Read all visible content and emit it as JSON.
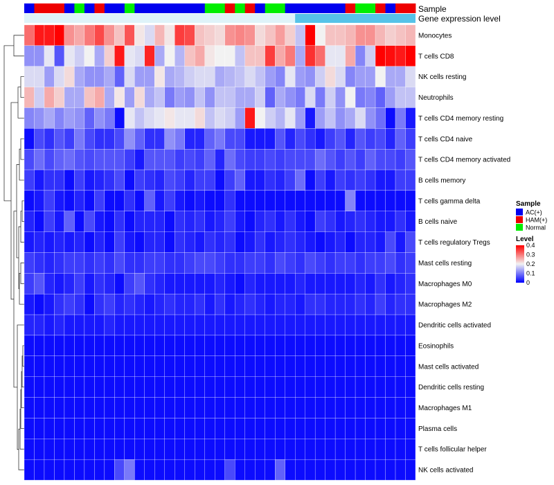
{
  "chart_data": {
    "type": "heatmap",
    "title": "",
    "annotation_labels": {
      "sample": "Sample",
      "expression": "Gene expression level"
    },
    "rows": [
      "Monocytes",
      "T cells CD8",
      "NK cells resting",
      "Neutrophils",
      "T cells CD4 memory resting",
      "T cells CD4 naive",
      "T cells CD4 memory activated",
      "B cells memory",
      "T cells gamma delta",
      "B cells naive",
      "T cells regulatory  Tregs",
      "Mast cells resting",
      "Macrophages M0",
      "Macrophages M2",
      "Dendritic cells activated",
      "Eosinophils",
      "Mast cells activated",
      "Dendritic cells resting",
      "Macrophages M1",
      "Plasma cells",
      "T cells follicular helper",
      "NK cells activated"
    ],
    "sample_groups": [
      "AC(+)",
      "HAM(+)",
      "HAM(+)",
      "HAM(+)",
      "AC(+)",
      "Normal",
      "AC(+)",
      "HAM(+)",
      "AC(+)",
      "AC(+)",
      "Normal",
      "AC(+)",
      "AC(+)",
      "AC(+)",
      "AC(+)",
      "AC(+)",
      "AC(+)",
      "AC(+)",
      "Normal",
      "Normal",
      "HAM(+)",
      "Normal",
      "HAM(+)",
      "AC(+)",
      "Normal",
      "Normal",
      "AC(+)",
      "AC(+)",
      "AC(+)",
      "AC(+)",
      "AC(+)",
      "AC(+)",
      "HAM(+)",
      "Normal",
      "Normal",
      "HAM(+)",
      "AC(+)",
      "HAM(+)",
      "HAM(+)"
    ],
    "expression_bar": {
      "colors": [
        "#dff3f9",
        "#56c3e8"
      ],
      "split_column": 27
    },
    "values": [
      [
        0.31,
        0.38,
        0.38,
        0.4,
        0.28,
        0.26,
        0.3,
        0.34,
        0.28,
        0.24,
        0.33,
        0.21,
        0.18,
        0.25,
        0.21,
        0.35,
        0.34,
        0.24,
        0.23,
        0.22,
        0.28,
        0.29,
        0.28,
        0.22,
        0.24,
        0.27,
        0.23,
        0.16,
        0.4,
        0.2,
        0.24,
        0.24,
        0.25,
        0.28,
        0.28,
        0.25,
        0.23,
        0.24,
        0.25
      ],
      [
        0.12,
        0.12,
        0.19,
        0.07,
        0.19,
        0.17,
        0.2,
        0.14,
        0.23,
        0.38,
        0.19,
        0.18,
        0.37,
        0.14,
        0.2,
        0.15,
        0.24,
        0.26,
        0.21,
        0.2,
        0.2,
        0.16,
        0.24,
        0.24,
        0.35,
        0.26,
        0.3,
        0.14,
        0.36,
        0.31,
        0.19,
        0.19,
        0.26,
        0.11,
        0.17,
        0.4,
        0.39,
        0.38,
        0.4
      ],
      [
        0.18,
        0.18,
        0.13,
        0.18,
        0.22,
        0.14,
        0.12,
        0.12,
        0.14,
        0.08,
        0.18,
        0.13,
        0.13,
        0.21,
        0.14,
        0.15,
        0.17,
        0.18,
        0.18,
        0.14,
        0.15,
        0.16,
        0.18,
        0.16,
        0.13,
        0.11,
        0.19,
        0.13,
        0.12,
        0.17,
        0.22,
        0.18,
        0.11,
        0.13,
        0.13,
        0.2,
        0.14,
        0.14,
        0.18
      ],
      [
        0.25,
        0.17,
        0.26,
        0.23,
        0.14,
        0.14,
        0.24,
        0.26,
        0.14,
        0.21,
        0.13,
        0.22,
        0.14,
        0.16,
        0.1,
        0.13,
        0.12,
        0.16,
        0.12,
        0.16,
        0.16,
        0.14,
        0.14,
        0.17,
        0.08,
        0.14,
        0.12,
        0.1,
        0.18,
        0.1,
        0.17,
        0.12,
        0.2,
        0.1,
        0.11,
        0.08,
        0.13,
        0.16,
        0.16
      ],
      [
        0.11,
        0.12,
        0.14,
        0.11,
        0.13,
        0.12,
        0.08,
        0.12,
        0.1,
        0.01,
        0.19,
        0.16,
        0.18,
        0.19,
        0.21,
        0.19,
        0.19,
        0.22,
        0.16,
        0.18,
        0.17,
        0.13,
        0.38,
        0.2,
        0.17,
        0.15,
        0.19,
        0.13,
        0.02,
        0.13,
        0.16,
        0.12,
        0.14,
        0.18,
        0.12,
        0.09,
        0.01,
        0.1,
        0.02
      ],
      [
        0.01,
        0.06,
        0.04,
        0.07,
        0.05,
        0.1,
        0.06,
        0.04,
        0.04,
        0.06,
        0.12,
        0.08,
        0.04,
        0.04,
        0.12,
        0.1,
        0.03,
        0.03,
        0.08,
        0.1,
        0.06,
        0.06,
        0.02,
        0.02,
        0.02,
        0.07,
        0.03,
        0.06,
        0.04,
        0.02,
        0.05,
        0.07,
        0.03,
        0.07,
        0.05,
        0.06,
        0.03,
        0.08,
        0.05
      ],
      [
        0.06,
        0.09,
        0.06,
        0.08,
        0.09,
        0.07,
        0.06,
        0.07,
        0.07,
        0.07,
        0.05,
        0.02,
        0.07,
        0.07,
        0.07,
        0.05,
        0.06,
        0.05,
        0.08,
        0.03,
        0.09,
        0.06,
        0.05,
        0.05,
        0.06,
        0.05,
        0.06,
        0.06,
        0.06,
        0.09,
        0.07,
        0.05,
        0.07,
        0.05,
        0.08,
        0.06,
        0.06,
        0.05,
        0.07
      ],
      [
        0.05,
        0.02,
        0.04,
        0.04,
        0.01,
        0.05,
        0.02,
        0.03,
        0.04,
        0.06,
        0.01,
        0.05,
        0.04,
        0.03,
        0.06,
        0.05,
        0.03,
        0.05,
        0.05,
        0.01,
        0.05,
        0.08,
        0.02,
        0.02,
        0.04,
        0.03,
        0.05,
        0.09,
        0.01,
        0.05,
        0.02,
        0.05,
        0.04,
        0.05,
        0.04,
        0.02,
        0.02,
        0.05,
        0.05
      ],
      [
        0.01,
        0.02,
        0.05,
        0.02,
        0.01,
        0.03,
        0.01,
        0.05,
        0.01,
        0.01,
        0.04,
        0.01,
        0.08,
        0.02,
        0.05,
        0.02,
        0.01,
        0.02,
        0.01,
        0.01,
        0.04,
        0.01,
        0.01,
        0.01,
        0.01,
        0.01,
        0.01,
        0.01,
        0.01,
        0.01,
        0.01,
        0.01,
        0.11,
        0.01,
        0.01,
        0.01,
        0.01,
        0.01,
        0.01
      ],
      [
        0.03,
        0.01,
        0.05,
        0.02,
        0.08,
        0.01,
        0.06,
        0.02,
        0.01,
        0.04,
        0.01,
        0.03,
        0.03,
        0.03,
        0.01,
        0.04,
        0.03,
        0.04,
        0.02,
        0.03,
        0.05,
        0.02,
        0.01,
        0.03,
        0.04,
        0.02,
        0.04,
        0.02,
        0.01,
        0.05,
        0.04,
        0.02,
        0.03,
        0.04,
        0.03,
        0.02,
        0.02,
        0.04,
        0.02
      ],
      [
        0.02,
        0.03,
        0.02,
        0.03,
        0.02,
        0.03,
        0.01,
        0.03,
        0.01,
        0.05,
        0.02,
        0.01,
        0.03,
        0.03,
        0.01,
        0.04,
        0.03,
        0.02,
        0.04,
        0.03,
        0.04,
        0.01,
        0.02,
        0.04,
        0.02,
        0.03,
        0.04,
        0.03,
        0.02,
        0.01,
        0.02,
        0.03,
        0.01,
        0.03,
        0.03,
        0.02,
        0.06,
        0.02,
        0.06
      ],
      [
        0.05,
        0.04,
        0.03,
        0.04,
        0.05,
        0.05,
        0.04,
        0.05,
        0.04,
        0.06,
        0.04,
        0.04,
        0.05,
        0.05,
        0.04,
        0.04,
        0.05,
        0.06,
        0.06,
        0.05,
        0.04,
        0.04,
        0.05,
        0.05,
        0.04,
        0.06,
        0.05,
        0.04,
        0.06,
        0.05,
        0.04,
        0.05,
        0.05,
        0.04,
        0.05,
        0.05,
        0.06,
        0.04,
        0.05
      ],
      [
        0.05,
        0.07,
        0.03,
        0.02,
        0.03,
        0.05,
        0.02,
        0.04,
        0.03,
        0.01,
        0.05,
        0.07,
        0.04,
        0.03,
        0.02,
        0.02,
        0.02,
        0.02,
        0.02,
        0.03,
        0.02,
        0.01,
        0.03,
        0.02,
        0.02,
        0.02,
        0.02,
        0.03,
        0.02,
        0.02,
        0.02,
        0.02,
        0.02,
        0.03,
        0.02,
        0.04,
        0.02,
        0.03,
        0.04
      ],
      [
        0.02,
        0.01,
        0.02,
        0.04,
        0.05,
        0.04,
        0.01,
        0.04,
        0.05,
        0.03,
        0.04,
        0.03,
        0.02,
        0.03,
        0.04,
        0.03,
        0.03,
        0.04,
        0.02,
        0.04,
        0.02,
        0.03,
        0.04,
        0.03,
        0.02,
        0.03,
        0.03,
        0.02,
        0.04,
        0.04,
        0.03,
        0.03,
        0.03,
        0.04,
        0.03,
        0.05,
        0.03,
        0.04,
        0.04
      ],
      [
        0.03,
        0.03,
        0.02,
        0.03,
        0.02,
        0.02,
        0.02,
        0.02,
        0.03,
        0.02,
        0.02,
        0.02,
        0.02,
        0.02,
        0.02,
        0.02,
        0.02,
        0.02,
        0.02,
        0.02,
        0.02,
        0.02,
        0.02,
        0.02,
        0.02,
        0.02,
        0.02,
        0.02,
        0.02,
        0.02,
        0.02,
        0.02,
        0.02,
        0.02,
        0.02,
        0.02,
        0.02,
        0.02,
        0.02
      ],
      [
        0.01,
        0.01,
        0.01,
        0.01,
        0.01,
        0.01,
        0.01,
        0.01,
        0.01,
        0.01,
        0.01,
        0.01,
        0.01,
        0.01,
        0.01,
        0.01,
        0.01,
        0.01,
        0.01,
        0.01,
        0.01,
        0.01,
        0.01,
        0.01,
        0.01,
        0.01,
        0.01,
        0.01,
        0.01,
        0.01,
        0.01,
        0.01,
        0.01,
        0.01,
        0.01,
        0.01,
        0.01,
        0.01,
        0.01
      ],
      [
        0.01,
        0.01,
        0.01,
        0.01,
        0.01,
        0.01,
        0.01,
        0.01,
        0.01,
        0.01,
        0.01,
        0.01,
        0.01,
        0.01,
        0.01,
        0.01,
        0.01,
        0.01,
        0.01,
        0.01,
        0.01,
        0.01,
        0.01,
        0.01,
        0.01,
        0.01,
        0.01,
        0.01,
        0.01,
        0.01,
        0.01,
        0.01,
        0.01,
        0.01,
        0.01,
        0.01,
        0.01,
        0.01,
        0.01
      ],
      [
        0.01,
        0.01,
        0.01,
        0.01,
        0.01,
        0.01,
        0.01,
        0.01,
        0.01,
        0.01,
        0.01,
        0.01,
        0.01,
        0.01,
        0.01,
        0.01,
        0.01,
        0.01,
        0.01,
        0.01,
        0.01,
        0.01,
        0.01,
        0.01,
        0.01,
        0.01,
        0.01,
        0.01,
        0.01,
        0.01,
        0.01,
        0.01,
        0.01,
        0.01,
        0.01,
        0.01,
        0.01,
        0.01,
        0.01
      ],
      [
        0.01,
        0.01,
        0.01,
        0.01,
        0.01,
        0.01,
        0.01,
        0.01,
        0.01,
        0.01,
        0.01,
        0.01,
        0.01,
        0.01,
        0.01,
        0.01,
        0.01,
        0.01,
        0.01,
        0.01,
        0.01,
        0.01,
        0.01,
        0.01,
        0.01,
        0.01,
        0.01,
        0.01,
        0.01,
        0.01,
        0.01,
        0.01,
        0.01,
        0.01,
        0.01,
        0.01,
        0.01,
        0.01,
        0.01
      ],
      [
        0.01,
        0.01,
        0.01,
        0.01,
        0.01,
        0.01,
        0.01,
        0.01,
        0.01,
        0.01,
        0.01,
        0.01,
        0.01,
        0.01,
        0.01,
        0.01,
        0.01,
        0.01,
        0.01,
        0.01,
        0.01,
        0.01,
        0.01,
        0.01,
        0.01,
        0.01,
        0.01,
        0.01,
        0.01,
        0.01,
        0.01,
        0.01,
        0.01,
        0.01,
        0.01,
        0.01,
        0.01,
        0.01,
        0.01
      ],
      [
        0.01,
        0.01,
        0.01,
        0.01,
        0.01,
        0.01,
        0.01,
        0.01,
        0.01,
        0.01,
        0.01,
        0.01,
        0.01,
        0.01,
        0.01,
        0.01,
        0.01,
        0.01,
        0.01,
        0.01,
        0.01,
        0.01,
        0.01,
        0.01,
        0.01,
        0.01,
        0.01,
        0.01,
        0.01,
        0.01,
        0.01,
        0.01,
        0.01,
        0.01,
        0.01,
        0.01,
        0.01,
        0.01,
        0.01
      ],
      [
        0.01,
        0.01,
        0.01,
        0.01,
        0.01,
        0.01,
        0.01,
        0.01,
        0.01,
        0.06,
        0.1,
        0.01,
        0.01,
        0.01,
        0.01,
        0.01,
        0.01,
        0.01,
        0.01,
        0.01,
        0.06,
        0.01,
        0.01,
        0.01,
        0.01,
        0.08,
        0.01,
        0.01,
        0.01,
        0.01,
        0.01,
        0.01,
        0.01,
        0.01,
        0.01,
        0.01,
        0.01,
        0.01,
        0.01
      ]
    ],
    "legend_sample": {
      "title": "Sample",
      "items": [
        {
          "label": "AC(+)",
          "color": "#0000ee"
        },
        {
          "label": "HAM(+)",
          "color": "#ee0000"
        },
        {
          "label": "Normal",
          "color": "#00ee00"
        }
      ]
    },
    "legend_level": {
      "title": "Level",
      "ticks": [
        "0.4",
        "0.3",
        "0.2",
        "0.1",
        "0"
      ],
      "min": 0,
      "max": 0.4
    },
    "colors": {
      "low": "#0000ff",
      "mid": "#f2f2f2",
      "high": "#ff0000",
      "border": "#ffffff",
      "dendrogram": "#333333"
    }
  }
}
